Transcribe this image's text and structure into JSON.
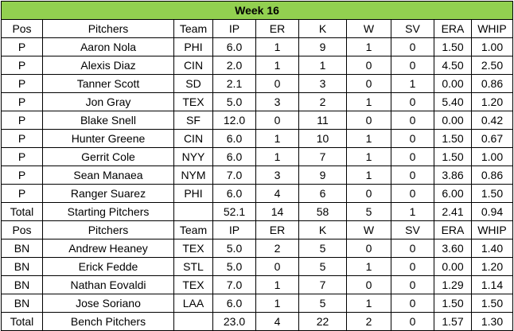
{
  "title": "Week 16",
  "columns": [
    "Pos",
    "Pitchers",
    "Team",
    "IP",
    "ER",
    "K",
    "W",
    "SV",
    "ERA",
    "WHIP"
  ],
  "starting": {
    "rows": [
      [
        "P",
        "Aaron Nola",
        "PHI",
        "6.0",
        "1",
        "9",
        "1",
        "0",
        "1.50",
        "1.00"
      ],
      [
        "P",
        "Alexis Diaz",
        "CIN",
        "2.0",
        "1",
        "1",
        "0",
        "0",
        "4.50",
        "2.50"
      ],
      [
        "P",
        "Tanner Scott",
        "SD",
        "2.1",
        "0",
        "3",
        "0",
        "1",
        "0.00",
        "0.86"
      ],
      [
        "P",
        "Jon Gray",
        "TEX",
        "5.0",
        "3",
        "2",
        "1",
        "0",
        "5.40",
        "1.20"
      ],
      [
        "P",
        "Blake Snell",
        "SF",
        "12.0",
        "0",
        "11",
        "0",
        "0",
        "0.00",
        "0.42"
      ],
      [
        "P",
        "Hunter Greene",
        "CIN",
        "6.0",
        "1",
        "10",
        "1",
        "0",
        "1.50",
        "0.67"
      ],
      [
        "P",
        "Gerrit Cole",
        "NYY",
        "6.0",
        "1",
        "7",
        "1",
        "0",
        "1.50",
        "1.00"
      ],
      [
        "P",
        "Sean Manaea",
        "NYM",
        "7.0",
        "3",
        "9",
        "1",
        "0",
        "3.86",
        "0.86"
      ],
      [
        "P",
        "Ranger Suarez",
        "PHI",
        "6.0",
        "4",
        "6",
        "0",
        "0",
        "6.00",
        "1.50"
      ]
    ],
    "total": [
      "Total",
      "Starting Pitchers",
      "",
      "52.1",
      "14",
      "58",
      "5",
      "1",
      "2.41",
      "0.94"
    ]
  },
  "bench": {
    "rows": [
      [
        "BN",
        "Andrew Heaney",
        "TEX",
        "5.0",
        "2",
        "5",
        "0",
        "0",
        "3.60",
        "1.40"
      ],
      [
        "BN",
        "Erick Fedde",
        "STL",
        "5.0",
        "0",
        "5",
        "1",
        "0",
        "0.00",
        "1.20"
      ],
      [
        "BN",
        "Nathan Eovaldi",
        "TEX",
        "7.0",
        "1",
        "7",
        "0",
        "0",
        "1.29",
        "1.14"
      ],
      [
        "BN",
        "Jose Soriano",
        "LAA",
        "6.0",
        "1",
        "5",
        "1",
        "0",
        "1.50",
        "1.50"
      ]
    ],
    "total": [
      "Total",
      "Bench Pitchers",
      "",
      "23.0",
      "4",
      "22",
      "2",
      "0",
      "1.57",
      "1.30"
    ]
  },
  "colors": {
    "title_bg": "#92d050",
    "border": "#000000"
  }
}
